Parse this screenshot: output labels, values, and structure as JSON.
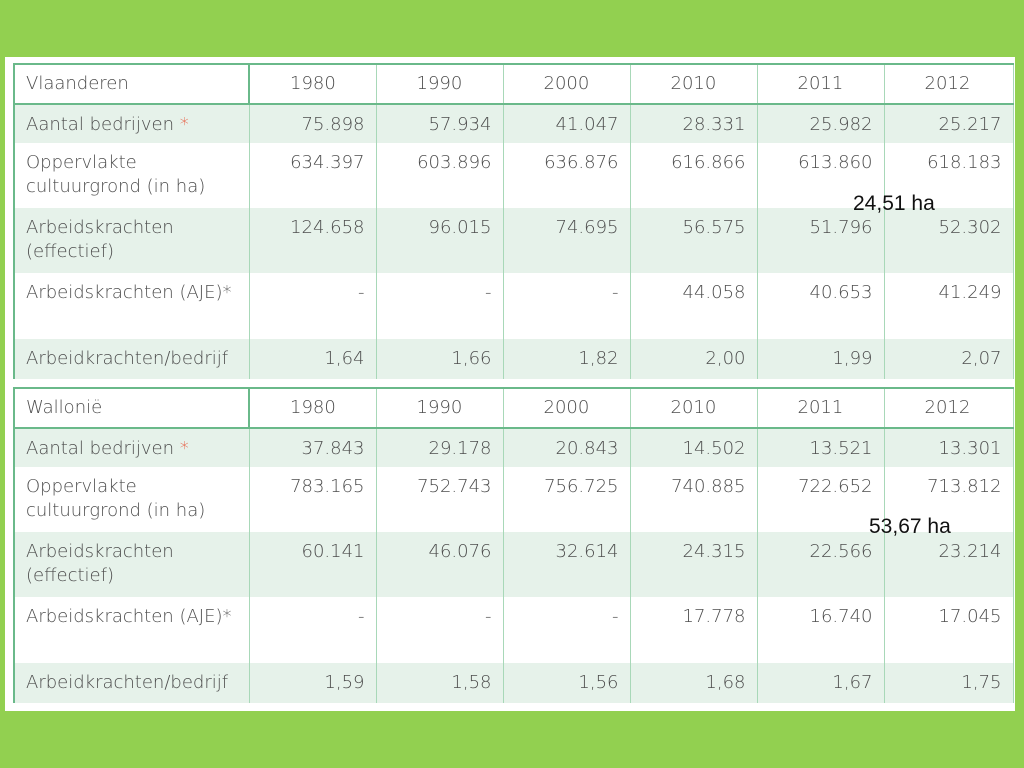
{
  "tables": [
    {
      "region": "Vlaanderen",
      "years": [
        "1980",
        "1990",
        "2000",
        "2010",
        "2011",
        "2012"
      ],
      "rows": [
        {
          "label": "Aantal bedrijven",
          "asterisk": "*",
          "values": [
            "75.898",
            "57.934",
            "41.047",
            "28.331",
            "25.982",
            "25.217"
          ]
        },
        {
          "label": "Oppervlakte cultuurgrond (in ha)",
          "asterisk": "",
          "values": [
            "634.397",
            "603.896",
            "636.876",
            "616.866",
            "613.860",
            "618.183"
          ]
        },
        {
          "label": "Arbeidskrachten (effectief)",
          "asterisk": "",
          "values": [
            "124.658",
            "96.015",
            "74.695",
            "56.575",
            "51.796",
            "52.302"
          ]
        },
        {
          "label": "Arbeidskrachten (AJE)*",
          "asterisk": "",
          "values": [
            "-",
            "-",
            "-",
            "44.058",
            "40.653",
            "41.249"
          ]
        },
        {
          "label": "Arbeidkrachten/bedrijf",
          "asterisk": "",
          "values": [
            "1,64",
            "1,66",
            "1,82",
            "2,00",
            "1,99",
            "2,07"
          ]
        }
      ]
    },
    {
      "region": "Wallonië",
      "years": [
        "1980",
        "1990",
        "2000",
        "2010",
        "2011",
        "2012"
      ],
      "rows": [
        {
          "label": "Aantal bedrijven",
          "asterisk": "*",
          "values": [
            "37.843",
            "29.178",
            "20.843",
            "14.502",
            "13.521",
            "13.301"
          ]
        },
        {
          "label": "Oppervlakte cultuurgrond (in ha)",
          "asterisk": "",
          "values": [
            "783.165",
            "752.743",
            "756.725",
            "740.885",
            "722.652",
            "713.812"
          ]
        },
        {
          "label": "Arbeidskrachten (effectief)",
          "asterisk": "",
          "values": [
            "60.141",
            "46.076",
            "32.614",
            "24.315",
            "22.566",
            "23.214"
          ]
        },
        {
          "label": "Arbeidskrachten (AJE)*",
          "asterisk": "",
          "values": [
            "-",
            "-",
            "-",
            "17.778",
            "16.740",
            "17.045"
          ]
        },
        {
          "label": "Arbeidkrachten/bedrijf",
          "asterisk": "",
          "values": [
            "1,59",
            "1,58",
            "1,56",
            "1,68",
            "1,67",
            "1,75"
          ]
        }
      ]
    }
  ],
  "annotations": {
    "vlaanderen_avg_area": "24,51 ha",
    "wallonie_avg_area": "53,67 ha"
  },
  "colors": {
    "background": "#92d050",
    "row_shade": "#e6f2ea",
    "grid": "#a8d8b8",
    "asterisk": "#e8563a"
  }
}
